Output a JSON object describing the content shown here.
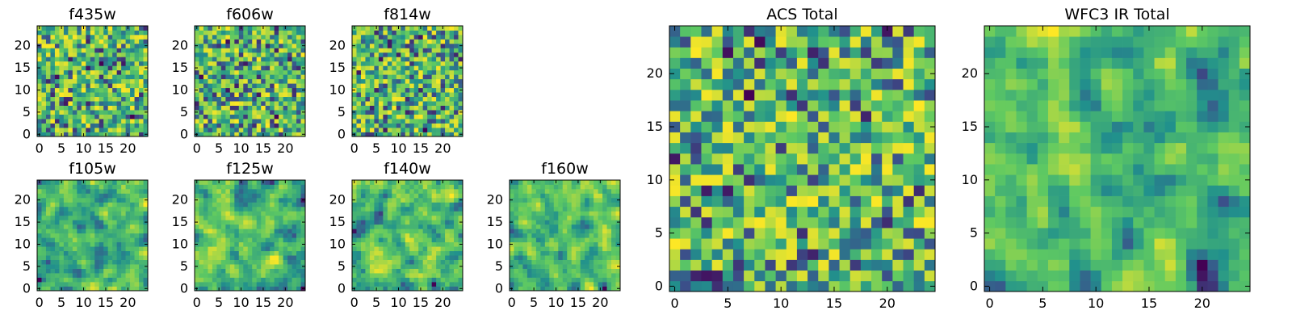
{
  "figure": {
    "colormap": "viridis",
    "colormap_stops": [
      "#440154",
      "#3b528b",
      "#21918c",
      "#5ec962",
      "#fde725"
    ]
  },
  "chart_data": [
    {
      "type": "heatmap",
      "title": "f435w",
      "grid_size": [
        25,
        25
      ],
      "xlim": [
        -0.5,
        24.5
      ],
      "ylim": [
        -0.5,
        24.5
      ],
      "xticks": [
        0,
        5,
        10,
        15,
        20
      ],
      "yticks": [
        0,
        5,
        10,
        15,
        20
      ],
      "seed": 11,
      "smooth": 0
    },
    {
      "type": "heatmap",
      "title": "f606w",
      "grid_size": [
        25,
        25
      ],
      "xlim": [
        -0.5,
        24.5
      ],
      "ylim": [
        -0.5,
        24.5
      ],
      "xticks": [
        0,
        5,
        10,
        15,
        20
      ],
      "yticks": [
        0,
        5,
        10,
        15,
        20
      ],
      "seed": 23,
      "smooth": 0
    },
    {
      "type": "heatmap",
      "title": "f814w",
      "grid_size": [
        25,
        25
      ],
      "xlim": [
        -0.5,
        24.5
      ],
      "ylim": [
        -0.5,
        24.5
      ],
      "xticks": [
        0,
        5,
        10,
        15,
        20
      ],
      "yticks": [
        0,
        5,
        10,
        15,
        20
      ],
      "seed": 37,
      "smooth": 0
    },
    {
      "type": "heatmap",
      "title": "f105w",
      "grid_size": [
        25,
        25
      ],
      "xlim": [
        -0.5,
        24.5
      ],
      "ylim": [
        -0.5,
        24.5
      ],
      "xticks": [
        0,
        5,
        10,
        15,
        20
      ],
      "yticks": [
        0,
        5,
        10,
        15,
        20
      ],
      "seed": 41,
      "smooth": 1
    },
    {
      "type": "heatmap",
      "title": "f125w",
      "grid_size": [
        25,
        25
      ],
      "xlim": [
        -0.5,
        24.5
      ],
      "ylim": [
        -0.5,
        24.5
      ],
      "xticks": [
        0,
        5,
        10,
        15,
        20
      ],
      "yticks": [
        0,
        5,
        10,
        15,
        20
      ],
      "seed": 53,
      "smooth": 1
    },
    {
      "type": "heatmap",
      "title": "f140w",
      "grid_size": [
        25,
        25
      ],
      "xlim": [
        -0.5,
        24.5
      ],
      "ylim": [
        -0.5,
        24.5
      ],
      "xticks": [
        0,
        5,
        10,
        15,
        20
      ],
      "yticks": [
        0,
        5,
        10,
        15,
        20
      ],
      "seed": 67,
      "smooth": 1
    },
    {
      "type": "heatmap",
      "title": "f160w",
      "grid_size": [
        25,
        25
      ],
      "xlim": [
        -0.5,
        24.5
      ],
      "ylim": [
        -0.5,
        24.5
      ],
      "xticks": [
        0,
        5,
        10,
        15,
        20
      ],
      "yticks": [
        0,
        5,
        10,
        15,
        20
      ],
      "seed": 79,
      "smooth": 1
    },
    {
      "type": "heatmap",
      "title": "ACS Total",
      "grid_size": [
        25,
        25
      ],
      "xlim": [
        -0.5,
        24.5
      ],
      "ylim": [
        -0.5,
        24.5
      ],
      "xticks": [
        0,
        5,
        10,
        15,
        20
      ],
      "yticks": [
        0,
        5,
        10,
        15,
        20
      ],
      "seed": 97,
      "smooth": 0
    },
    {
      "type": "heatmap",
      "title": "WFC3 IR Total",
      "grid_size": [
        25,
        25
      ],
      "xlim": [
        -0.5,
        24.5
      ],
      "ylim": [
        -0.5,
        24.5
      ],
      "xticks": [
        0,
        5,
        10,
        15,
        20
      ],
      "yticks": [
        0,
        5,
        10,
        15,
        20
      ],
      "seed": 131,
      "smooth": 1
    }
  ]
}
